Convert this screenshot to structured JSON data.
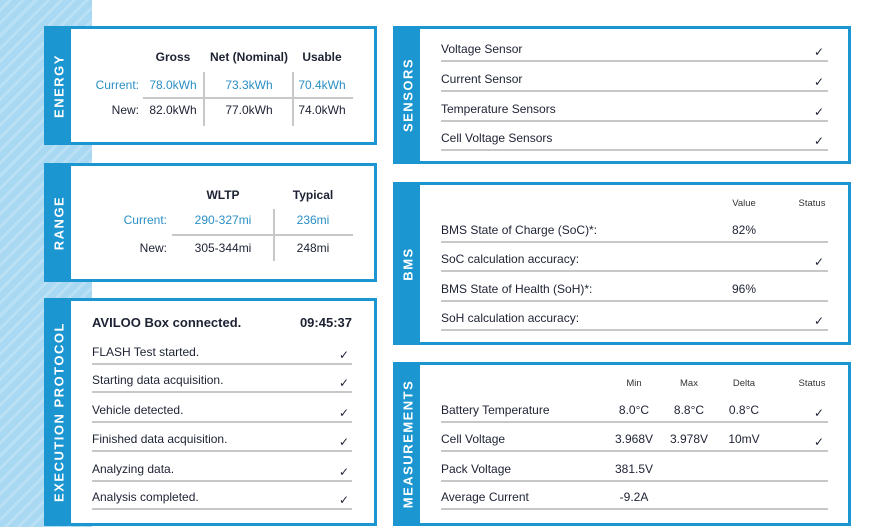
{
  "colors": {
    "accent": "#1b96d1",
    "current_value": "#2a8fc4"
  },
  "energy": {
    "title": "ENERGY",
    "columns": [
      "Gross",
      "Net (Nominal)",
      "Usable"
    ],
    "rows": [
      {
        "label": "Current:",
        "values": [
          "78.0kWh",
          "73.3kWh",
          "70.4kWh"
        ]
      },
      {
        "label": "New:",
        "values": [
          "82.0kWh",
          "77.0kWh",
          "74.0kWh"
        ]
      }
    ]
  },
  "range": {
    "title": "RANGE",
    "columns": [
      "WLTP",
      "Typical"
    ],
    "rows": [
      {
        "label": "Current:",
        "values": [
          "290-327mi",
          "236mi"
        ]
      },
      {
        "label": "New:",
        "values": [
          "305-344mi",
          "248mi"
        ]
      }
    ]
  },
  "execution": {
    "title": "EXECUTION PROTOCOL",
    "header": "AVILOO Box connected.",
    "time": "09:45:37",
    "steps": [
      {
        "label": "FLASH Test started.",
        "done": true
      },
      {
        "label": "Starting data acquisition.",
        "done": true
      },
      {
        "label": "Vehicle detected.",
        "done": true
      },
      {
        "label": "Finished data acquisition.",
        "done": true
      },
      {
        "label": "Analyzing data.",
        "done": true
      },
      {
        "label": "Analysis completed.",
        "done": true
      }
    ]
  },
  "sensors": {
    "title": "SENSORS",
    "items": [
      {
        "label": "Voltage Sensor",
        "ok": true
      },
      {
        "label": "Current Sensor",
        "ok": true
      },
      {
        "label": "Temperature Sensors",
        "ok": true
      },
      {
        "label": "Cell Voltage Sensors",
        "ok": true
      }
    ]
  },
  "bms": {
    "title": "BMS",
    "columns": [
      "Value",
      "Status"
    ],
    "rows": [
      {
        "label": "BMS State of Charge (SoC)*:",
        "value": "82%",
        "ok": false
      },
      {
        "label": "SoC calculation accuracy:",
        "value": "",
        "ok": true
      },
      {
        "label": "BMS State of Health (SoH)*:",
        "value": "96%",
        "ok": false
      },
      {
        "label": "SoH calculation accuracy:",
        "value": "",
        "ok": true
      }
    ]
  },
  "measurements": {
    "title": "MEASUREMENTS",
    "columns": [
      "Min",
      "Max",
      "Delta",
      "Status"
    ],
    "rows": [
      {
        "label": "Battery Temperature",
        "min": "8.0°C",
        "max": "8.8°C",
        "delta": "0.8°C",
        "ok": true
      },
      {
        "label": "Cell Voltage",
        "min": "3.968V",
        "max": "3.978V",
        "delta": "10mV",
        "ok": true
      },
      {
        "label": "Pack Voltage",
        "min": "381.5V",
        "max": "",
        "delta": "",
        "ok": false
      },
      {
        "label": "Average Current",
        "min": "-9.2A",
        "max": "",
        "delta": "",
        "ok": false
      }
    ]
  },
  "icons": {
    "check": "✓"
  }
}
